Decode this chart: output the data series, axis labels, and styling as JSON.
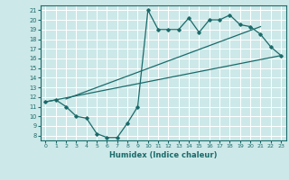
{
  "background_color": "#cde8e8",
  "grid_color": "#ffffff",
  "line_color": "#1a6b6b",
  "xlabel": "Humidex (Indice chaleur)",
  "xlim": [
    -0.5,
    23.5
  ],
  "ylim": [
    7.5,
    21.5
  ],
  "xticks": [
    0,
    1,
    2,
    3,
    4,
    5,
    6,
    7,
    8,
    9,
    10,
    11,
    12,
    13,
    14,
    15,
    16,
    17,
    18,
    19,
    20,
    21,
    22,
    23
  ],
  "yticks": [
    8,
    9,
    10,
    11,
    12,
    13,
    14,
    15,
    16,
    17,
    18,
    19,
    20,
    21
  ],
  "line1_x": [
    0,
    1,
    2,
    3,
    4,
    5,
    6,
    7,
    8,
    9,
    10,
    11,
    12,
    13,
    14,
    15,
    16,
    17,
    18,
    19,
    20,
    21,
    22,
    23
  ],
  "line1_y": [
    11.5,
    11.7,
    11.0,
    10.0,
    9.8,
    8.2,
    7.8,
    7.8,
    9.3,
    11.0,
    21.0,
    19.0,
    19.0,
    19.0,
    20.2,
    18.7,
    20.0,
    20.0,
    20.5,
    19.5,
    19.3,
    18.5,
    17.2,
    16.3
  ],
  "line2_x": [
    0,
    23
  ],
  "line2_y": [
    11.5,
    16.3
  ],
  "line3_x": [
    2,
    21
  ],
  "line3_y": [
    11.8,
    19.3
  ]
}
